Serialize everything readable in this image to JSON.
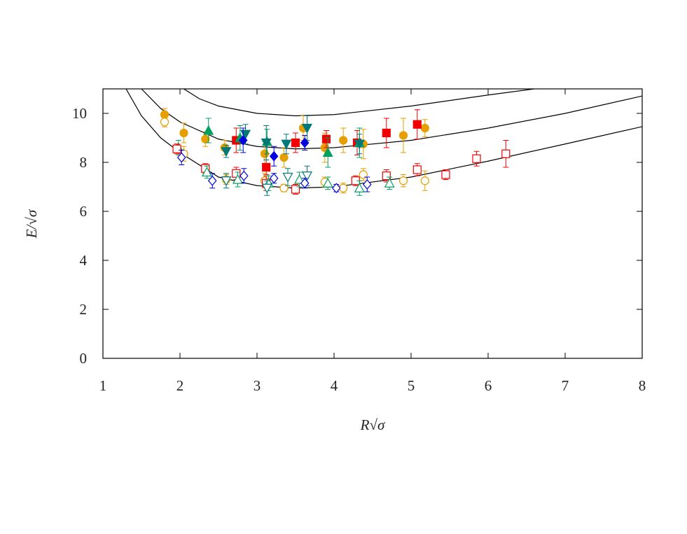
{
  "chart_data": {
    "type": "scatter",
    "xlabel": "R√σ",
    "ylabel": "E/√σ",
    "xlim": [
      1,
      8
    ],
    "ylim": [
      0,
      11
    ],
    "xticks": [
      1,
      2,
      3,
      4,
      5,
      6,
      7,
      8
    ],
    "yticks": [
      0,
      2,
      4,
      6,
      8,
      10
    ],
    "series": [
      {
        "type": "line",
        "color": "#000000",
        "x": [
          1.3,
          1.5,
          1.75,
          2,
          2.5,
          3,
          3.5,
          4,
          5,
          6,
          7,
          8
        ],
        "values": [
          11,
          9.9,
          9.0,
          8.4,
          7.4,
          7.05,
          6.95,
          7.0,
          7.4,
          8.05,
          8.75,
          9.46
        ]
      },
      {
        "type": "line",
        "color": "#000000",
        "x": [
          1.5,
          1.75,
          2,
          2.5,
          3,
          3.5,
          4,
          5,
          6,
          7,
          8
        ],
        "values": [
          11,
          10.2,
          9.65,
          8.95,
          8.65,
          8.55,
          8.6,
          8.9,
          9.4,
          10.0,
          10.71
        ]
      },
      {
        "type": "line",
        "color": "#000000",
        "x": [
          2.05,
          2.25,
          2.5,
          3,
          3.5,
          4,
          5,
          6,
          6.6
        ],
        "values": [
          11,
          10.6,
          10.3,
          10.0,
          9.9,
          9.95,
          10.3,
          10.75,
          11
        ]
      },
      {
        "type": "scatter",
        "marker": "circle",
        "filled": true,
        "color": "#e69f00",
        "x": [
          1.8,
          2.05,
          2.33,
          2.58,
          3.1,
          3.35,
          3.6,
          3.88,
          4.12,
          4.38,
          4.9,
          5.18
        ],
        "values": [
          9.95,
          9.2,
          8.95,
          8.6,
          8.35,
          8.2,
          9.4,
          8.6,
          8.9,
          8.75,
          9.1,
          9.4
        ],
        "errors": [
          0.25,
          0.4,
          0.3,
          0.3,
          0.5,
          0.4,
          0.5,
          0.6,
          0.5,
          0.6,
          0.7,
          0.35
        ]
      },
      {
        "type": "scatter",
        "marker": "square",
        "filled": true,
        "color": "#f00000",
        "x": [
          2.73,
          3.12,
          3.5,
          3.9,
          4.3,
          4.68,
          5.08
        ],
        "values": [
          8.9,
          7.8,
          8.8,
          8.95,
          8.8,
          9.2,
          9.55
        ],
        "errors": [
          0.5,
          0.3,
          0.4,
          0.35,
          0.5,
          0.6,
          0.6
        ]
      },
      {
        "type": "scatter",
        "marker": "triangle-up",
        "filled": true,
        "color": "#00a060",
        "x": [
          1.98,
          2.37,
          2.78,
          3.13,
          3.92,
          4.33
        ],
        "values": [
          8.6,
          9.3,
          9.0,
          8.85,
          8.4,
          8.8
        ],
        "errors": [
          0.3,
          0.5,
          0.5,
          0.5,
          0.6,
          0.6
        ]
      },
      {
        "type": "scatter",
        "marker": "triangle-down",
        "filled": true,
        "color": "#007878",
        "x": [
          2.6,
          2.85,
          3.12,
          3.38,
          3.65,
          4.33
        ],
        "values": [
          8.45,
          9.15,
          8.8,
          8.75,
          9.4,
          8.75
        ],
        "errors": [
          0.25,
          0.4,
          0.7,
          0.4,
          0.5,
          0.4
        ]
      },
      {
        "type": "scatter",
        "marker": "diamond",
        "filled": true,
        "color": "#0000e0",
        "x": [
          2.82,
          3.22,
          3.62
        ],
        "values": [
          8.9,
          8.25,
          8.8
        ],
        "errors": [
          0.5,
          0.4,
          0.3
        ]
      },
      {
        "type": "scatter",
        "marker": "circle",
        "filled": false,
        "color": "#e69f00",
        "x": [
          1.8,
          2.05,
          2.6,
          3.1,
          3.35,
          3.88,
          4.12,
          4.38,
          4.9,
          5.18
        ],
        "values": [
          9.65,
          8.35,
          7.3,
          7.25,
          6.95,
          7.2,
          6.95,
          7.5,
          7.25,
          7.25
        ],
        "errors": [
          0.2,
          0.3,
          0.2,
          0.3,
          0.15,
          0.2,
          0.2,
          0.25,
          0.25,
          0.4
        ]
      },
      {
        "type": "scatter",
        "marker": "square",
        "filled": false,
        "color": "#f00000",
        "x": [
          1.96,
          2.33,
          2.73,
          3.12,
          3.5,
          4.28,
          4.68,
          5.08,
          5.45,
          5.85,
          6.23
        ],
        "values": [
          8.55,
          7.75,
          7.55,
          7.15,
          6.9,
          7.25,
          7.45,
          7.7,
          7.5,
          8.15,
          8.35
        ],
        "errors": [
          0.2,
          0.2,
          0.25,
          0.3,
          0.2,
          0.2,
          0.25,
          0.25,
          0.2,
          0.3,
          0.55
        ]
      },
      {
        "type": "scatter",
        "marker": "triangle-up",
        "filled": false,
        "color": "#00a060",
        "x": [
          2.35,
          2.75,
          3.15,
          3.55,
          3.92,
          4.33,
          4.72
        ],
        "values": [
          7.6,
          7.3,
          7.15,
          7.3,
          7.15,
          6.95,
          7.15
        ],
        "errors": [
          0.25,
          0.3,
          0.3,
          0.3,
          0.25,
          0.3,
          0.25
        ]
      },
      {
        "type": "scatter",
        "marker": "triangle-down",
        "filled": false,
        "color": "#007878",
        "x": [
          2.6,
          3.13,
          3.4,
          3.65
        ],
        "values": [
          7.25,
          6.95,
          7.4,
          7.45
        ],
        "errors": [
          0.3,
          0.3,
          0.35,
          0.4
        ]
      },
      {
        "type": "scatter",
        "marker": "diamond",
        "filled": false,
        "color": "#0000e0",
        "x": [
          2.02,
          2.42,
          2.83,
          3.22,
          3.62,
          4.03,
          4.43
        ],
        "values": [
          8.2,
          7.25,
          7.45,
          7.35,
          7.15,
          6.95,
          7.1
        ],
        "errors": [
          0.3,
          0.3,
          0.3,
          0.2,
          0.2,
          0.15,
          0.3
        ]
      }
    ]
  }
}
